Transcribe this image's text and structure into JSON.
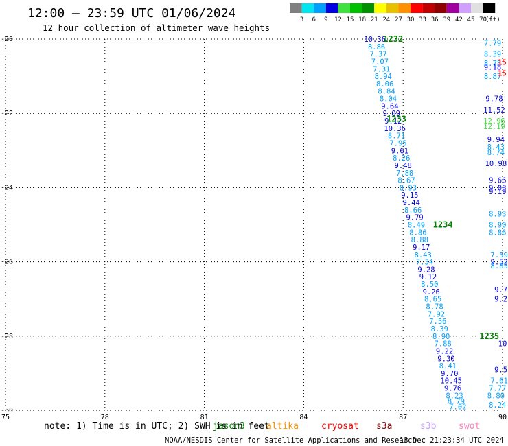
{
  "header": {
    "title": "12:00 – 23:59 UTC 01/06/2024",
    "subtitle": "12 hour collection of altimeter wave heights"
  },
  "colorbar": {
    "unit": "(ft)",
    "bins": [
      {
        "label": "3",
        "color": "#808080"
      },
      {
        "label": "6",
        "color": "#00e5ee"
      },
      {
        "label": "9",
        "color": "#00a0ff"
      },
      {
        "label": "12",
        "color": "#0000e0"
      },
      {
        "label": "15",
        "color": "#40e040"
      },
      {
        "label": "18",
        "color": "#00c000"
      },
      {
        "label": "21",
        "color": "#009000"
      },
      {
        "label": "24",
        "color": "#ffff00"
      },
      {
        "label": "27",
        "color": "#e8c000"
      },
      {
        "label": "30",
        "color": "#ff9000"
      },
      {
        "label": "33",
        "color": "#ff0000"
      },
      {
        "label": "36",
        "color": "#c00000"
      },
      {
        "label": "39",
        "color": "#900000"
      },
      {
        "label": "42",
        "color": "#a000a0"
      },
      {
        "label": "45",
        "color": "#d0a0ff"
      },
      {
        "label": "70",
        "color": "#e0e0e0"
      },
      {
        "label": "",
        "color": "#000000"
      }
    ]
  },
  "chart_data": {
    "type": "scatter",
    "xlim": [
      75,
      90
    ],
    "ylim": [
      -30,
      -20
    ],
    "xticks": [
      "75",
      "78",
      "81",
      "84",
      "87",
      "90"
    ],
    "xtick_values": [
      75,
      78,
      81,
      84,
      87,
      90
    ],
    "yticks": [
      "-20",
      "-22",
      "-24",
      "-26",
      "-28",
      "-30"
    ],
    "ytick_values": [
      -20,
      -22,
      -24,
      -26,
      -28,
      -30
    ],
    "grid": true,
    "pass_labels": [
      {
        "text": "1232",
        "x": 86.7,
        "y": -20.0
      },
      {
        "text": "1233",
        "x": 86.8,
        "y": -22.15
      },
      {
        "text": "1234",
        "x": 88.2,
        "y": -25.0
      },
      {
        "text": "1235",
        "x": 89.6,
        "y": -28.0
      }
    ],
    "track_main": [
      {
        "v": "10.36",
        "x": 86.15,
        "y": -20.0
      },
      {
        "v": "8.86",
        "x": 86.2,
        "y": -20.2
      },
      {
        "v": "7.37",
        "x": 86.25,
        "y": -20.4
      },
      {
        "v": "7.07",
        "x": 86.3,
        "y": -20.6
      },
      {
        "v": "7.31",
        "x": 86.35,
        "y": -20.8
      },
      {
        "v": "8.94",
        "x": 86.4,
        "y": -21.0
      },
      {
        "v": "8.06",
        "x": 86.45,
        "y": -21.2
      },
      {
        "v": "8.84",
        "x": 86.5,
        "y": -21.4
      },
      {
        "v": "8.04",
        "x": 86.55,
        "y": -21.6
      },
      {
        "v": "9.64",
        "x": 86.6,
        "y": -21.8
      },
      {
        "v": "9.09",
        "x": 86.65,
        "y": -22.0
      },
      {
        "v": "9.12",
        "x": 86.7,
        "y": -22.2
      },
      {
        "v": "10.36",
        "x": 86.75,
        "y": -22.4
      },
      {
        "v": "8.71",
        "x": 86.8,
        "y": -22.6
      },
      {
        "v": "7.95",
        "x": 86.85,
        "y": -22.8
      },
      {
        "v": "9.61",
        "x": 86.9,
        "y": -23.0
      },
      {
        "v": "8.26",
        "x": 86.95,
        "y": -23.2
      },
      {
        "v": "9.48",
        "x": 87.0,
        "y": -23.4
      },
      {
        "v": "7.88",
        "x": 87.05,
        "y": -23.6
      },
      {
        "v": "8.67",
        "x": 87.1,
        "y": -23.8
      },
      {
        "v": "8.93",
        "x": 87.15,
        "y": -24.0
      },
      {
        "v": "9.15",
        "x": 87.2,
        "y": -24.2
      },
      {
        "v": "9.44",
        "x": 87.25,
        "y": -24.4
      },
      {
        "v": "8.66",
        "x": 87.3,
        "y": -24.6
      },
      {
        "v": "9.79",
        "x": 87.35,
        "y": -24.8
      },
      {
        "v": "8.49",
        "x": 87.4,
        "y": -25.0
      },
      {
        "v": "8.86",
        "x": 87.45,
        "y": -25.2
      },
      {
        "v": "8.88",
        "x": 87.5,
        "y": -25.4
      },
      {
        "v": "9.17",
        "x": 87.55,
        "y": -25.6
      },
      {
        "v": "8.43",
        "x": 87.6,
        "y": -25.8
      },
      {
        "v": "7.34",
        "x": 87.65,
        "y": -26.0
      },
      {
        "v": "9.28",
        "x": 87.7,
        "y": -26.2
      },
      {
        "v": "9.12",
        "x": 87.75,
        "y": -26.4
      },
      {
        "v": "8.50",
        "x": 87.8,
        "y": -26.6
      },
      {
        "v": "9.26",
        "x": 87.85,
        "y": -26.8
      },
      {
        "v": "8.65",
        "x": 87.9,
        "y": -27.0
      },
      {
        "v": "8.78",
        "x": 87.95,
        "y": -27.2
      },
      {
        "v": "7.92",
        "x": 88.0,
        "y": -27.4
      },
      {
        "v": "7.56",
        "x": 88.05,
        "y": -27.6
      },
      {
        "v": "8.39",
        "x": 88.1,
        "y": -27.8
      },
      {
        "v": "8.90",
        "x": 88.15,
        "y": -28.0
      },
      {
        "v": "7.88",
        "x": 88.2,
        "y": -28.2
      },
      {
        "v": "9.22",
        "x": 88.25,
        "y": -28.4
      },
      {
        "v": "9.30",
        "x": 88.3,
        "y": -28.6
      },
      {
        "v": "8.41",
        "x": 88.35,
        "y": -28.8
      },
      {
        "v": "9.70",
        "x": 88.4,
        "y": -29.0
      },
      {
        "v": "10.45",
        "x": 88.45,
        "y": -29.2
      },
      {
        "v": "9.76",
        "x": 88.5,
        "y": -29.4
      },
      {
        "v": "8.23",
        "x": 88.55,
        "y": -29.6
      },
      {
        "v": "8.79",
        "x": 88.6,
        "y": -29.75
      },
      {
        "v": "7.02",
        "x": 88.65,
        "y": -29.9
      }
    ],
    "track_right": [
      {
        "v": "7.79",
        "x": 89.7,
        "y": -20.1
      },
      {
        "v": "8.39",
        "x": 89.7,
        "y": -20.4
      },
      {
        "v": "8.78",
        "x": 89.7,
        "y": -20.65
      },
      {
        "v": "9.18",
        "x": 89.7,
        "y": -20.75
      },
      {
        "v": "8.87",
        "x": 89.7,
        "y": -21.0
      },
      {
        "v": "9.78",
        "x": 89.75,
        "y": -21.6
      },
      {
        "v": "11.52",
        "x": 89.75,
        "y": -21.9
      },
      {
        "v": "12.96",
        "x": 89.75,
        "y": -22.2
      },
      {
        "v": "12.19",
        "x": 89.75,
        "y": -22.35
      },
      {
        "v": "9.94",
        "x": 89.8,
        "y": -22.7
      },
      {
        "v": "8.43",
        "x": 89.8,
        "y": -22.9
      },
      {
        "v": "8.74",
        "x": 89.8,
        "y": -23.05
      },
      {
        "v": "10.98",
        "x": 89.8,
        "y": -23.35
      },
      {
        "v": "9.66",
        "x": 89.85,
        "y": -23.8
      },
      {
        "v": "9.08",
        "x": 89.85,
        "y": -24.0
      },
      {
        "v": "9.19",
        "x": 89.85,
        "y": -24.1
      },
      {
        "v": "8.93",
        "x": 89.85,
        "y": -24.7
      },
      {
        "v": "8.90",
        "x": 89.85,
        "y": -25.0
      },
      {
        "v": "8.86",
        "x": 89.85,
        "y": -25.2
      },
      {
        "v": "7.59",
        "x": 89.9,
        "y": -25.8
      },
      {
        "v": "9.52",
        "x": 89.9,
        "y": -26.0
      },
      {
        "v": "8.85",
        "x": 89.9,
        "y": -26.1
      },
      {
        "v": "9.7",
        "x": 89.95,
        "y": -26.75
      },
      {
        "v": "9.2",
        "x": 89.95,
        "y": -27.0
      },
      {
        "v": "10",
        "x": 90.0,
        "y": -28.2
      },
      {
        "v": "9.5",
        "x": 89.95,
        "y": -28.9
      },
      {
        "v": "7.61",
        "x": 89.9,
        "y": -29.2
      },
      {
        "v": "7.77",
        "x": 89.85,
        "y": -29.4
      },
      {
        "v": "8.80",
        "x": 89.8,
        "y": -29.6
      },
      {
        "v": "8.24",
        "x": 89.85,
        "y": -29.85
      }
    ],
    "track_edge": [
      {
        "v": "15",
        "x": 90.0,
        "y": -20.6
      },
      {
        "v": "15",
        "x": 90.0,
        "y": -20.9
      }
    ]
  },
  "footer": {
    "note": "note: 1) Time is in UTC; 2) SWH is in feet",
    "satellites": [
      {
        "name": "jason3",
        "color": "#008000"
      },
      {
        "name": "altika",
        "color": "#ff9000"
      },
      {
        "name": "cryosat",
        "color": "#ff0000"
      },
      {
        "name": "s3a",
        "color": "#900000"
      },
      {
        "name": "s3b",
        "color": "#c8a0ff"
      },
      {
        "name": "swot",
        "color": "#ff80c0"
      }
    ],
    "credit": "NOAA/NESDIS Center for Satellite Applications and Research",
    "timestamp": "13 Dec 21:23:34 UTC 2024"
  }
}
